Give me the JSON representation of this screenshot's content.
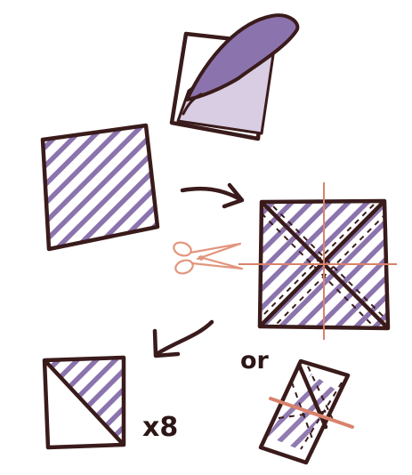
{
  "colors": {
    "ink": "#3a1b1b",
    "purple": "#8b74ad",
    "lavender": "#d8cde3",
    "scissors": "#e2957c",
    "cut_line": "#d9826c"
  },
  "labels": {
    "multiplier": "x8",
    "alternative": "or"
  },
  "icons": [
    "scissors-icon",
    "arrow-right-icon",
    "arrow-down-left-icon"
  ]
}
